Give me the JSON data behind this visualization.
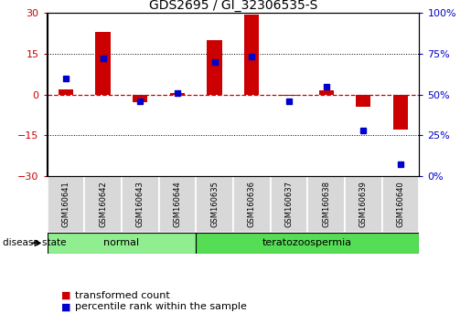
{
  "title": "GDS2695 / GI_32306535-S",
  "samples": [
    "GSM160641",
    "GSM160642",
    "GSM160643",
    "GSM160644",
    "GSM160635",
    "GSM160636",
    "GSM160637",
    "GSM160638",
    "GSM160639",
    "GSM160640"
  ],
  "red_values": [
    2.0,
    23.0,
    -3.0,
    0.5,
    20.0,
    29.5,
    -0.5,
    1.5,
    -4.5,
    -13.0
  ],
  "blue_values_pct": [
    60,
    72,
    46,
    51,
    70,
    73,
    46,
    55,
    28,
    7
  ],
  "ylim_left": [
    -30,
    30
  ],
  "ylim_right": [
    0,
    100
  ],
  "yticks_left": [
    -30,
    -15,
    0,
    15,
    30
  ],
  "yticks_right": [
    0,
    25,
    50,
    75,
    100
  ],
  "disease_groups": [
    {
      "label": "normal",
      "start": 0,
      "end": 4,
      "color": "#90ee90"
    },
    {
      "label": "teratozoospermia",
      "start": 4,
      "end": 10,
      "color": "#55dd55"
    }
  ],
  "bar_color": "#cc0000",
  "dot_color": "#0000cc",
  "bg_color": "#ffffff",
  "dashed_zero_color": "#cc0000",
  "legend_labels": [
    "transformed count",
    "percentile rank within the sample"
  ],
  "disease_state_label": "disease state"
}
